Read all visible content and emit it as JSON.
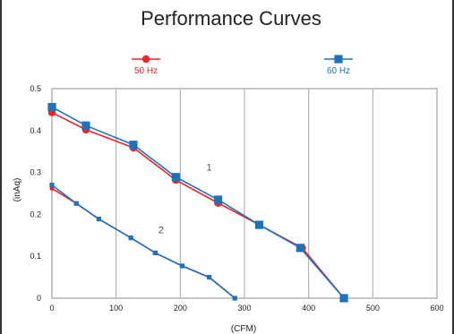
{
  "chart_data": {
    "type": "line",
    "title": "Performance Curves",
    "xlabel": "(CFM)",
    "ylabel": "(inAq)",
    "xlim": [
      0,
      600
    ],
    "ylim": [
      0,
      0.5
    ],
    "x_ticks": [
      "0",
      "100",
      "200",
      "300",
      "400",
      "500",
      "600"
    ],
    "y_ticks": [
      "0",
      "0.1",
      "0.2",
      "0.3",
      "0.4",
      "0.5"
    ],
    "grid": "vertical",
    "legend_position": "top",
    "curve_labels": [
      {
        "text": "1",
        "x": 245,
        "y": 0.305
      },
      {
        "text": "2",
        "x": 170,
        "y": 0.155
      }
    ],
    "series": [
      {
        "name": "50 Hz",
        "curve": "1",
        "color": "#e8262b",
        "marker": "circle",
        "points": [
          [
            0,
            0.443
          ],
          [
            53,
            0.402
          ],
          [
            127,
            0.359
          ],
          [
            193,
            0.282
          ],
          [
            259,
            0.227
          ],
          [
            323,
            0.175
          ],
          [
            390,
            0.12
          ],
          [
            455,
            0.0
          ]
        ]
      },
      {
        "name": "60 Hz",
        "curve": "1",
        "color": "#1f72b8",
        "marker": "square",
        "points": [
          [
            0,
            0.456
          ],
          [
            53,
            0.412
          ],
          [
            127,
            0.366
          ],
          [
            193,
            0.289
          ],
          [
            259,
            0.235
          ],
          [
            323,
            0.175
          ],
          [
            387,
            0.12
          ],
          [
            455,
            0.0
          ]
        ]
      },
      {
        "name": "50 Hz",
        "curve": "2",
        "color": "#e8262b",
        "marker": "circle",
        "points": [
          [
            0,
            0.262
          ],
          [
            38,
            0.226
          ],
          [
            73,
            0.189
          ],
          [
            123,
            0.144
          ],
          [
            161,
            0.108
          ],
          [
            203,
            0.077
          ],
          [
            245,
            0.05
          ],
          [
            285,
            0.0
          ]
        ]
      },
      {
        "name": "60 Hz",
        "curve": "2",
        "color": "#1f72b8",
        "marker": "square",
        "points": [
          [
            0,
            0.27
          ],
          [
            38,
            0.226
          ],
          [
            73,
            0.189
          ],
          [
            123,
            0.144
          ],
          [
            161,
            0.108
          ],
          [
            203,
            0.077
          ],
          [
            245,
            0.05
          ],
          [
            285,
            0.0
          ]
        ]
      }
    ],
    "legend": [
      {
        "label": "50 Hz",
        "color": "#e8262b",
        "marker": "circle"
      },
      {
        "label": "60 Hz",
        "color": "#1f72b8",
        "marker": "square"
      }
    ]
  }
}
